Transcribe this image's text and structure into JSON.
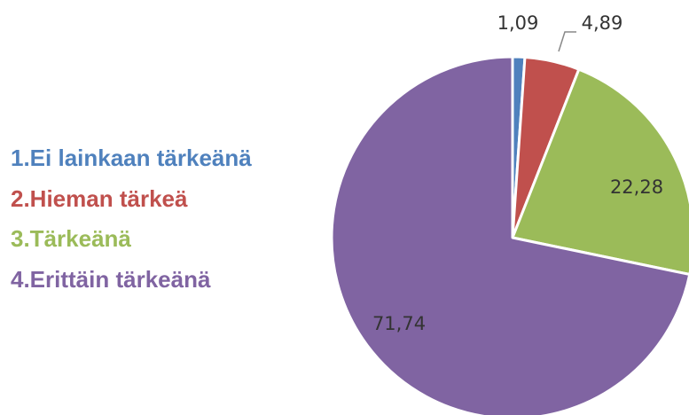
{
  "chart_data": {
    "type": "pie",
    "categories": [
      "1.Ei lainkaan tärkeänä",
      "2.Hieman tärkeä",
      "3.Tärkeänä",
      "4.Erittäin tärkeänä"
    ],
    "values": [
      1.09,
      4.89,
      22.28,
      71.74
    ],
    "value_labels": [
      "1,09",
      "4,89",
      "22,28",
      "71,74"
    ],
    "colors": [
      "#4f81bd",
      "#c0504d",
      "#9bbb59",
      "#8064a2"
    ]
  }
}
